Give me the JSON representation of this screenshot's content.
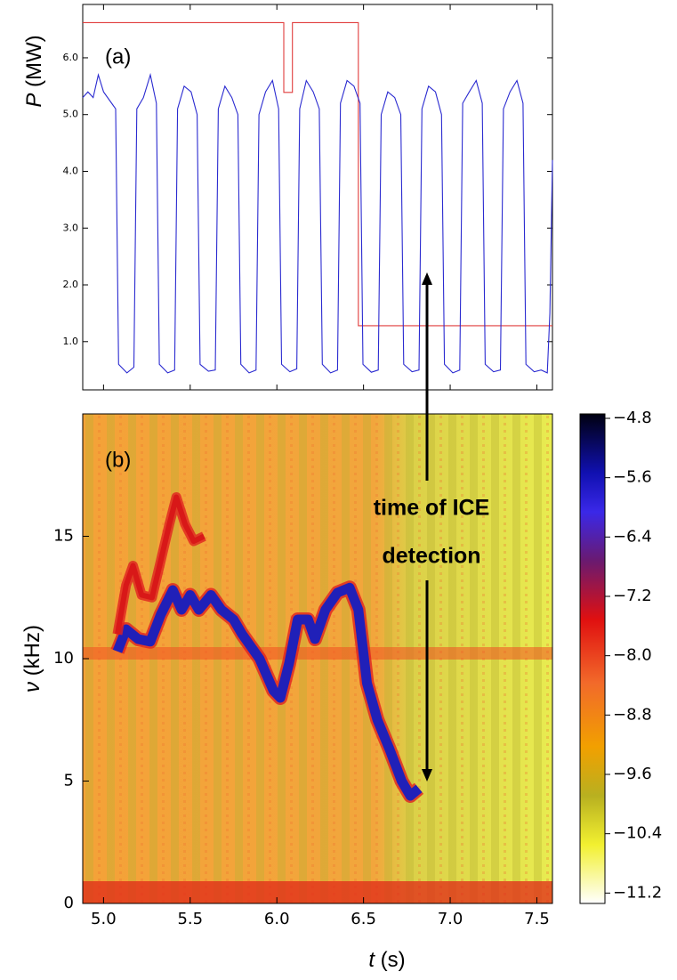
{
  "chart_data": [
    {
      "type": "line",
      "panel_label": "(a)",
      "ylabel": [
        "P",
        "(MW)"
      ],
      "xlim": [
        4.88,
        7.59
      ],
      "ylim": [
        0.15,
        6.94
      ],
      "yticks": [
        {
          "value": 1,
          "label": "1.0"
        },
        {
          "value": 2,
          "label": "2.0"
        },
        {
          "value": 3,
          "label": "3.0"
        },
        {
          "value": 4,
          "label": "4.0"
        },
        {
          "value": 5,
          "label": "5.0"
        },
        {
          "value": 6,
          "label": "6.0"
        }
      ],
      "series": [
        {
          "color": "#e03c3c",
          "x": [
            4.88,
            6.04,
            6.04,
            6.09,
            6.09,
            6.47,
            6.47,
            7.59
          ],
          "values": [
            6.62,
            6.62,
            5.39,
            5.39,
            6.62,
            6.62,
            1.28,
            1.28
          ]
        },
        {
          "color": "#2a2ad0",
          "x": [
            4.88,
            4.91,
            4.94,
            4.97,
            5.0,
            5.07,
            5.087,
            5.135,
            5.175,
            5.192,
            5.23,
            5.27,
            5.305,
            5.322,
            5.37,
            5.41,
            5.427,
            5.465,
            5.505,
            5.54,
            5.557,
            5.605,
            5.645,
            5.662,
            5.7,
            5.74,
            5.775,
            5.792,
            5.84,
            5.88,
            5.897,
            5.935,
            5.975,
            6.01,
            6.027,
            6.075,
            6.115,
            6.132,
            6.17,
            6.21,
            6.245,
            6.262,
            6.31,
            6.35,
            6.367,
            6.405,
            6.445,
            6.48,
            6.497,
            6.545,
            6.585,
            6.602,
            6.64,
            6.68,
            6.715,
            6.732,
            6.78,
            6.82,
            6.837,
            6.875,
            6.915,
            6.95,
            6.967,
            7.015,
            7.055,
            7.072,
            7.11,
            7.15,
            7.185,
            7.202,
            7.25,
            7.29,
            7.307,
            7.345,
            7.385,
            7.42,
            7.437,
            7.485,
            7.525,
            7.56,
            7.575,
            7.59
          ],
          "values": [
            5.3,
            5.4,
            5.3,
            5.7,
            5.4,
            5.1,
            0.6,
            0.45,
            0.55,
            5.1,
            5.3,
            5.7,
            5.2,
            0.6,
            0.45,
            0.5,
            5.1,
            5.5,
            5.4,
            5.0,
            0.6,
            0.48,
            0.5,
            5.1,
            5.5,
            5.3,
            5.0,
            0.6,
            0.45,
            0.5,
            5.0,
            5.4,
            5.6,
            5.1,
            0.6,
            0.47,
            0.52,
            5.1,
            5.6,
            5.4,
            5.1,
            0.6,
            0.45,
            0.5,
            5.2,
            5.6,
            5.5,
            5.2,
            0.6,
            0.46,
            0.5,
            5.0,
            5.4,
            5.3,
            5.0,
            0.6,
            0.47,
            0.5,
            5.1,
            5.5,
            5.4,
            5.0,
            0.6,
            0.45,
            0.5,
            5.2,
            5.4,
            5.6,
            5.2,
            0.6,
            0.47,
            0.5,
            5.1,
            5.4,
            5.6,
            5.2,
            0.6,
            0.47,
            0.5,
            0.45,
            1.5,
            4.2
          ]
        }
      ]
    },
    {
      "type": "spectrogram",
      "panel_label": "(b)",
      "xlabel": [
        "t",
        "(s)"
      ],
      "ylabel": [
        "ν",
        "(kHz)"
      ],
      "xlim": [
        4.88,
        7.59
      ],
      "ylim": [
        0,
        20
      ],
      "xticks": [
        {
          "value": 5,
          "label": "5.0"
        },
        5.5,
        {
          "value": 6,
          "label": "6.0"
        },
        6.5,
        {
          "value": 7,
          "label": "7.0"
        },
        7.5
      ],
      "yticks": [
        0,
        5,
        10,
        15
      ],
      "series": [
        {
          "color": "#2020b8",
          "x": [
            5.08,
            5.13,
            5.2,
            5.27,
            5.33,
            5.4,
            5.45,
            5.5,
            5.55,
            5.62,
            5.68,
            5.75,
            5.8,
            5.9,
            5.98,
            6.02,
            6.07,
            6.12,
            6.18,
            6.22,
            6.28,
            6.35,
            6.42,
            6.47,
            6.52,
            6.58,
            6.65,
            6.72,
            6.77,
            6.82
          ],
          "values": [
            10.3,
            11.2,
            10.8,
            10.7,
            11.8,
            12.8,
            12.0,
            12.6,
            12.0,
            12.6,
            12.0,
            11.6,
            11.0,
            10.0,
            8.7,
            8.4,
            9.8,
            11.6,
            11.6,
            10.8,
            12.0,
            12.7,
            12.9,
            12.0,
            9.0,
            7.5,
            6.3,
            5.0,
            4.4,
            4.7
          ]
        },
        {
          "color": "#d81818",
          "x": [
            5.08,
            5.13,
            5.17,
            5.22,
            5.28,
            5.33,
            5.38,
            5.42,
            5.47,
            5.52,
            5.58
          ],
          "values": [
            11.0,
            13.0,
            13.8,
            12.6,
            12.5,
            14.0,
            15.5,
            16.6,
            15.5,
            14.8,
            15.0
          ]
        }
      ],
      "colorbar": {
        "lim": [
          -11.34,
          -4.74
        ],
        "ticks": [
          {
            "value": -4.8,
            "label": "−4.8"
          },
          {
            "value": -5.6,
            "label": "−5.6"
          },
          {
            "value": -6.4,
            "label": "−6.4"
          },
          {
            "value": -7.2,
            "label": "−7.2"
          },
          {
            "value": -8.0,
            "label": "−8.0"
          },
          {
            "value": -8.8,
            "label": "−8.8"
          },
          {
            "value": -9.6,
            "label": "−9.6"
          },
          {
            "value": -10.4,
            "label": "−10.4"
          },
          {
            "value": -11.2,
            "label": "−11.2"
          }
        ]
      },
      "annotations": [
        "time of ICE",
        "detection"
      ]
    }
  ]
}
